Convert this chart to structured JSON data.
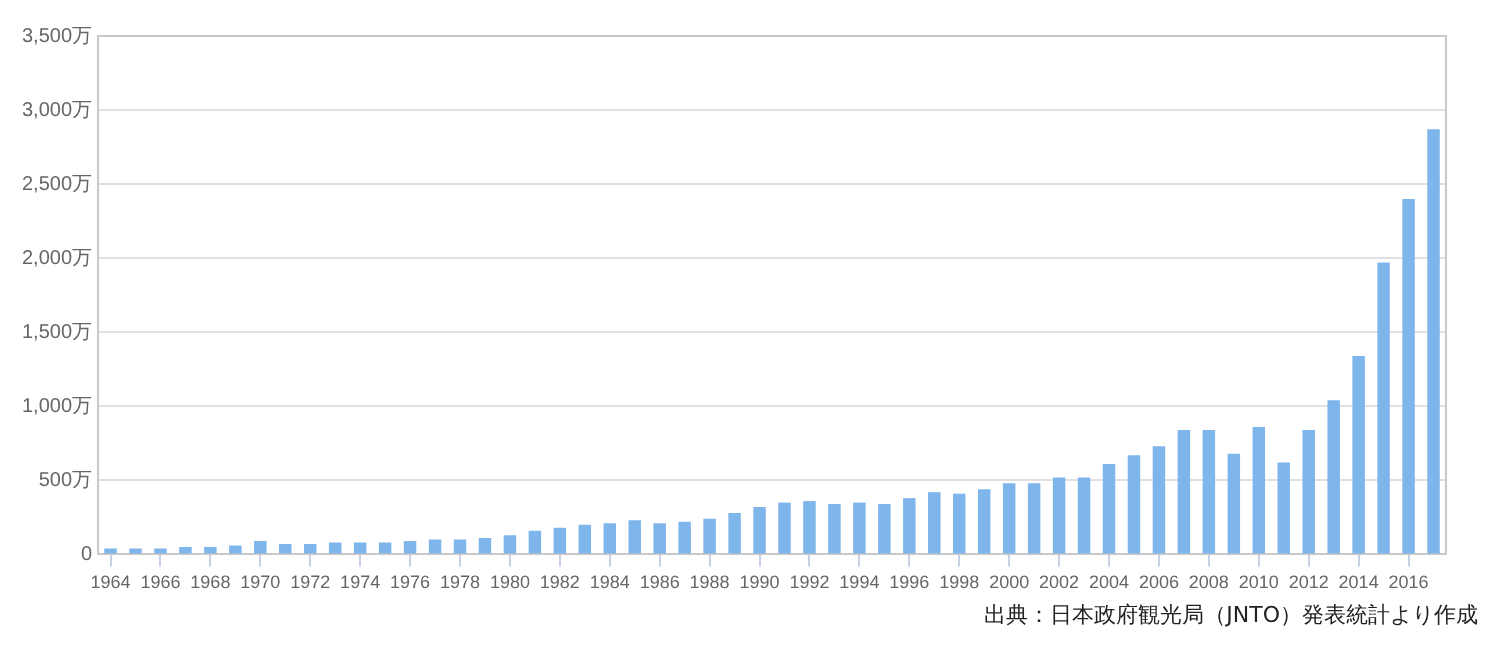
{
  "chart_data": {
    "type": "bar",
    "categories": [
      "1964",
      null,
      "1966",
      null,
      "1968",
      null,
      "1970",
      null,
      "1972",
      null,
      "1974",
      null,
      "1976",
      null,
      "1978",
      null,
      "1980",
      null,
      "1982",
      null,
      "1984",
      null,
      "1986",
      null,
      "1988",
      null,
      "1990",
      null,
      "1992",
      null,
      "1994",
      null,
      "1996",
      null,
      "1998",
      null,
      "2000",
      null,
      "2002",
      null,
      "2004",
      null,
      "2006",
      null,
      "2008",
      null,
      "2010",
      null,
      "2012",
      null,
      "2014",
      null,
      "2016",
      null
    ],
    "values": [
      40,
      40,
      40,
      50,
      50,
      60,
      90,
      70,
      70,
      80,
      80,
      80,
      90,
      100,
      100,
      110,
      130,
      160,
      180,
      200,
      210,
      230,
      210,
      220,
      240,
      280,
      320,
      350,
      360,
      340,
      350,
      340,
      380,
      420,
      410,
      440,
      480,
      480,
      520,
      520,
      610,
      670,
      730,
      840,
      840,
      680,
      860,
      620,
      840,
      1040,
      1340,
      1970,
      2400,
      2870
    ],
    "color": "#7eb6ec",
    "ylim": [
      0,
      3500
    ],
    "yticks": [
      0,
      {
        "value": 500,
        "label": "500万"
      },
      {
        "value": 1000,
        "label": "1,000万"
      },
      {
        "value": 1500,
        "label": "1,500万"
      },
      {
        "value": 2000,
        "label": "2,000万"
      },
      {
        "value": 2500,
        "label": "2,500万"
      },
      {
        "value": 3000,
        "label": "3,000万"
      },
      {
        "value": 3500,
        "label": "3,500万"
      }
    ],
    "grid": "y",
    "annotations": [
      "出典：日本政府観光局（JNTO）発表統計より作成"
    ]
  }
}
